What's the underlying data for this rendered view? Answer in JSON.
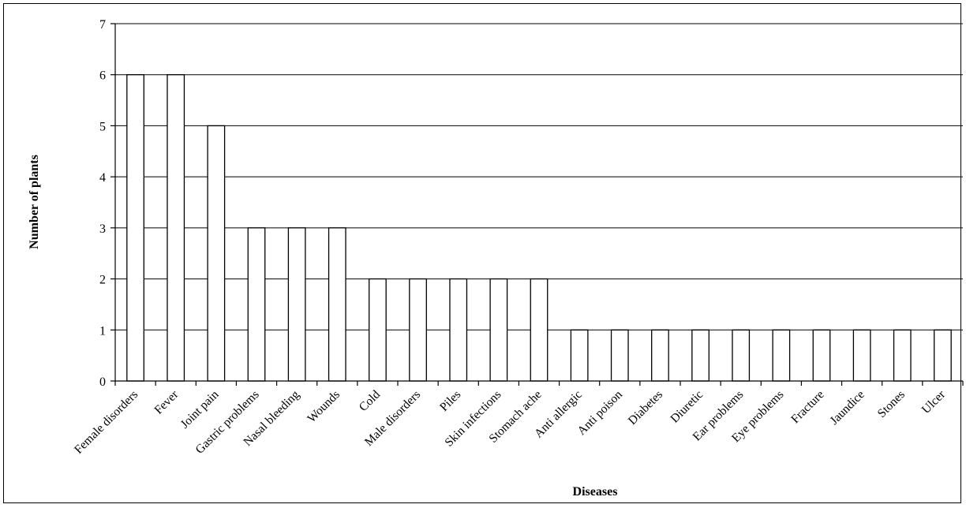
{
  "chart_data": {
    "type": "bar",
    "title": "",
    "xlabel": "Diseases",
    "ylabel": "Number of  plants",
    "ylim": [
      0,
      7
    ],
    "yticks": [
      0,
      1,
      2,
      3,
      4,
      5,
      6,
      7
    ],
    "grid": true,
    "legend": "none",
    "bar_fill": "#ffffff",
    "bar_stroke": "#000000",
    "categories": [
      "Female disorders",
      "Fever",
      "Joint pain",
      "Gastric problems",
      "Nasal bleeding",
      "Wounds",
      "Cold",
      "Male disorders",
      "Piles",
      "Skin infections",
      "Stomach ache",
      "Anti allergic",
      "Anti poison",
      "Diabetes",
      "Diuretic",
      "Ear problems",
      "Eye problems",
      "Fracture",
      "Jaundice",
      "Stones",
      "Ulcer"
    ],
    "values": [
      6,
      6,
      5,
      3,
      3,
      3,
      2,
      2,
      2,
      2,
      2,
      1,
      1,
      1,
      1,
      1,
      1,
      1,
      1,
      1,
      1
    ]
  }
}
